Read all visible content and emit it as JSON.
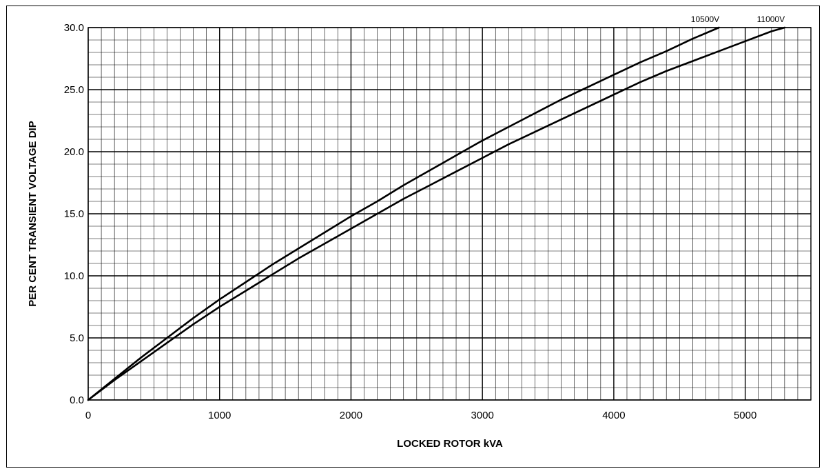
{
  "chart_data": {
    "type": "line",
    "title": "",
    "xlabel": "LOCKED ROTOR kVA",
    "ylabel": "PER CENT TRANSIENT VOLTAGE DIP",
    "xlim": [
      0,
      5500
    ],
    "ylim": [
      0,
      30
    ],
    "x_ticks": [
      0,
      1000,
      2000,
      3000,
      4000,
      5000
    ],
    "x_tick_labels": [
      "0",
      "1000",
      "2000",
      "3000",
      "4000",
      "5000"
    ],
    "y_ticks": [
      0,
      5,
      10,
      15,
      20,
      25,
      30
    ],
    "y_tick_labels": [
      "0.0",
      "5.0",
      "10.0",
      "15.0",
      "20.0",
      "25.0",
      "30.0"
    ],
    "grid": true,
    "series": [
      {
        "name": "10500V",
        "x": [
          0,
          200,
          400,
          600,
          800,
          1000,
          1200,
          1400,
          1600,
          1800,
          2000,
          2200,
          2400,
          2600,
          2800,
          3000,
          3200,
          3400,
          3600,
          3800,
          4000,
          4200,
          4400,
          4600,
          4800
        ],
        "y": [
          0,
          1.7,
          3.4,
          5.0,
          6.6,
          8.1,
          9.5,
          10.9,
          12.2,
          13.5,
          14.8,
          16.0,
          17.3,
          18.5,
          19.7,
          20.9,
          22.0,
          23.1,
          24.2,
          25.2,
          26.2,
          27.2,
          28.1,
          29.1,
          30.0
        ]
      },
      {
        "name": "11000V",
        "x": [
          0,
          200,
          400,
          600,
          800,
          1000,
          1200,
          1400,
          1600,
          1800,
          2000,
          2200,
          2400,
          2600,
          2800,
          3000,
          3200,
          3400,
          3600,
          3800,
          4000,
          4200,
          4400,
          4600,
          4800,
          5000,
          5200,
          5300
        ],
        "y": [
          0,
          1.6,
          3.1,
          4.6,
          6.1,
          7.5,
          8.8,
          10.1,
          11.4,
          12.6,
          13.8,
          15.0,
          16.2,
          17.3,
          18.4,
          19.5,
          20.6,
          21.6,
          22.6,
          23.6,
          24.6,
          25.6,
          26.5,
          27.3,
          28.1,
          28.9,
          29.7,
          30.0
        ]
      }
    ]
  }
}
